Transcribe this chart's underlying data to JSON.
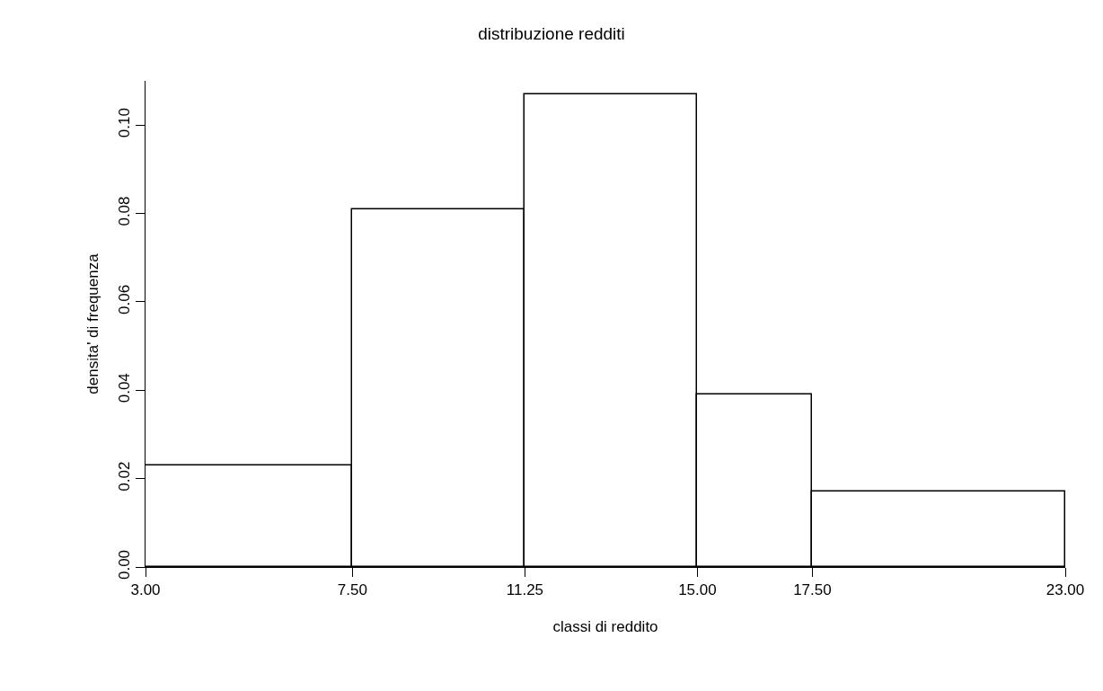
{
  "chart_data": {
    "type": "histogram",
    "title": "distribuzione redditi",
    "xlabel": "classi di reddito",
    "ylabel": "densita' di frequenza",
    "bins": [
      3,
      7.5,
      11.25,
      15,
      17.5,
      23
    ],
    "values": [
      0.023,
      0.081,
      0.107,
      0.039,
      0.017
    ],
    "color": "#ffffff",
    "xlim": [
      3,
      23
    ],
    "xticks": [
      {
        "value": 3,
        "label": "3.00"
      },
      {
        "value": 7.5,
        "label": "7.50"
      },
      {
        "value": 11.25,
        "label": "11.25"
      },
      {
        "value": 15,
        "label": "15.00"
      },
      {
        "value": 17.5,
        "label": "17.50"
      },
      {
        "value": 23,
        "label": "23.00"
      }
    ],
    "ylim": [
      0,
      0.11
    ],
    "yticks": [
      {
        "value": 0,
        "label": "0.00"
      },
      {
        "value": 0.02,
        "label": "0.02"
      },
      {
        "value": 0.04,
        "label": "0.04"
      },
      {
        "value": 0.06,
        "label": "0.06"
      },
      {
        "value": 0.08,
        "label": "0.08"
      },
      {
        "value": 0.1,
        "label": "0.10"
      }
    ]
  }
}
